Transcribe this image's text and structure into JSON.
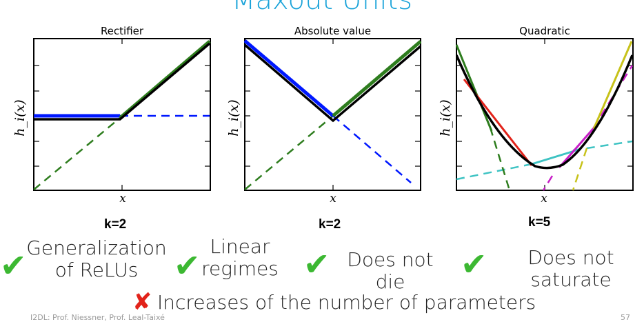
{
  "slide": {
    "title": "Maxout Units",
    "footer_left": "I2DL: Prof. Niessner, Prof. Leal-Taixé",
    "page_number": "57"
  },
  "plots": [
    {
      "title": "Rectifier",
      "ylabel": "h_i(x)",
      "xlabel": "x",
      "k_label": "k=2"
    },
    {
      "title": "Absolute value",
      "ylabel": "h_i(x)",
      "xlabel": "x",
      "k_label": "k=2"
    },
    {
      "title": "Quadratic",
      "ylabel": "h_i(x)",
      "xlabel": "x",
      "k_label": "k=5"
    }
  ],
  "pros": [
    {
      "icon": "check-icon",
      "text_lines": [
        "Generalization",
        "of ReLUs"
      ]
    },
    {
      "icon": "check-icon",
      "text_lines": [
        "Linear",
        "regimes"
      ]
    },
    {
      "icon": "check-icon",
      "text_lines": [
        "Does not",
        "die"
      ]
    },
    {
      "icon": "check-icon",
      "text_lines": [
        "Does not",
        "saturate"
      ]
    }
  ],
  "cons": [
    {
      "icon": "cross-icon",
      "text": "Increases of the number of parameters"
    }
  ],
  "colors": {
    "title": "#1aa3d9",
    "check": "#3cb832",
    "cross": "#e2231a"
  }
}
